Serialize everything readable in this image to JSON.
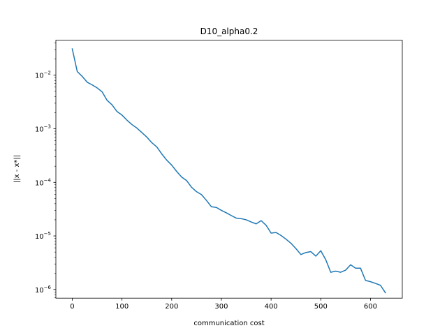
{
  "chart_data": {
    "type": "line",
    "title": "D10_alpha0.2",
    "xlabel": "communication cost",
    "ylabel": "||x - x*||",
    "y_scale": "log",
    "xlim": [
      -33,
      664
    ],
    "ylim": [
      6.9e-07,
      0.045
    ],
    "grid": false,
    "legend": "none",
    "line_color": "#1f77b4",
    "x_ticks": [
      {
        "value": 0,
        "label": "0"
      },
      {
        "value": 100,
        "label": "100"
      },
      {
        "value": 200,
        "label": "200"
      },
      {
        "value": 300,
        "label": "300"
      },
      {
        "value": 400,
        "label": "400"
      },
      {
        "value": 500,
        "label": "500"
      },
      {
        "value": 600,
        "label": "600"
      }
    ],
    "y_ticks": [
      {
        "value": 1e-06,
        "mantissa": "10",
        "exponent": "−6"
      },
      {
        "value": 1e-05,
        "mantissa": "10",
        "exponent": "−5"
      },
      {
        "value": 0.0001,
        "mantissa": "10",
        "exponent": "−4"
      },
      {
        "value": 0.001,
        "mantissa": "10",
        "exponent": "−3"
      },
      {
        "value": 0.01,
        "mantissa": "10",
        "exponent": "−2"
      }
    ],
    "series": [
      {
        "x": [
          0,
          10,
          20,
          30,
          40,
          50,
          60,
          70,
          80,
          90,
          100,
          110,
          120,
          130,
          140,
          150,
          160,
          170,
          180,
          190,
          200,
          210,
          220,
          230,
          240,
          250,
          260,
          270,
          280,
          290,
          300,
          310,
          320,
          330,
          340,
          350,
          360,
          370,
          380,
          390,
          400,
          410,
          420,
          430,
          440,
          450,
          460,
          470,
          480,
          490,
          500,
          510,
          520,
          530,
          540,
          550,
          560,
          570,
          580,
          590,
          600,
          610,
          620,
          630
        ],
        "y": [
          0.031,
          0.0117,
          0.0095,
          0.0074,
          0.0066,
          0.0058,
          0.0049,
          0.0034,
          0.0028,
          0.0021,
          0.0018,
          0.00145,
          0.0012,
          0.00103,
          0.00085,
          0.0007,
          0.00055,
          0.00046,
          0.00034,
          0.00026,
          0.00021,
          0.00016,
          0.000126,
          0.000108,
          8.1e-05,
          6.7e-05,
          5.9e-05,
          4.6e-05,
          3.5e-05,
          3.4e-05,
          3e-05,
          2.7e-05,
          2.4e-05,
          2.15e-05,
          2.1e-05,
          2e-05,
          1.82e-05,
          1.68e-05,
          1.93e-05,
          1.58e-05,
          1.13e-05,
          1.16e-05,
          1.02e-05,
          8.7e-06,
          7.3e-06,
          5.8e-06,
          4.5e-06,
          4.9e-06,
          5.1e-06,
          4.2e-06,
          5.3e-06,
          3.6e-06,
          2.1e-06,
          2.2e-06,
          2.1e-06,
          2.3e-06,
          2.9e-06,
          2.5e-06,
          2.5e-06,
          1.48e-06,
          1.4e-06,
          1.3e-06,
          1.2e-06,
          8.7e-07
        ]
      }
    ]
  }
}
